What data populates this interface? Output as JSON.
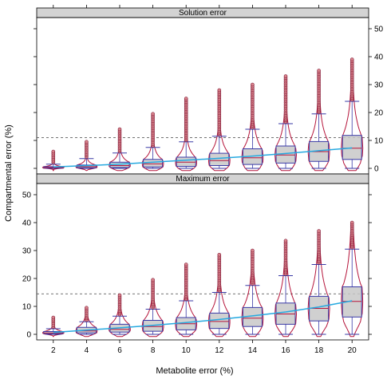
{
  "figure": {
    "xlabel": "Metabolite error (%)",
    "ylabel": "Compartmental error (%)"
  },
  "colors": {
    "strip_bg": "#d3d3d3",
    "box_fill": "#c8c8c8",
    "box_border": "#3a3aa6",
    "violin": "#b5143a",
    "outlier_fill": "#d8828a",
    "outlier_stroke": "#7a1030",
    "trend": "#26a9e0",
    "reference_line": "#444444"
  },
  "chart_data": [
    {
      "type": "box",
      "title": "Solution error",
      "x": [
        2,
        4,
        6,
        8,
        10,
        12,
        14,
        16,
        18,
        20
      ],
      "ylim": [
        -2,
        54
      ],
      "yticks": [
        0,
        10,
        20,
        30,
        40,
        50
      ],
      "y_axis_side": "right",
      "reference_line": 11,
      "grid": false,
      "series": [
        {
          "median": [
            0.3,
            0.6,
            1.0,
            1.6,
            2.2,
            2.8,
            3.8,
            4.8,
            6.0,
            7.2
          ],
          "q1": [
            0.1,
            0.2,
            0.3,
            0.5,
            0.7,
            1.0,
            1.4,
            1.9,
            2.5,
            3.2
          ],
          "q3": [
            0.6,
            1.2,
            2.2,
            3.2,
            4.0,
            5.4,
            7.0,
            8.0,
            9.6,
            11.8
          ],
          "whisker_low": [
            0,
            0,
            0,
            0,
            0,
            0,
            0,
            0,
            0,
            0
          ],
          "whisker_high": [
            1.5,
            3.5,
            5.5,
            7.5,
            9.5,
            11.5,
            14.0,
            16.0,
            19.5,
            24.0
          ],
          "max": [
            6.0,
            9.5,
            14.0,
            19.5,
            25.0,
            28.0,
            30.0,
            33.0,
            35.0,
            39.0
          ],
          "trend": [
            0.5,
            1.0,
            1.5,
            2.2,
            2.9,
            3.6,
            4.4,
            5.3,
            6.3,
            7.3
          ]
        }
      ]
    },
    {
      "type": "box",
      "title": "Maximum error",
      "x": [
        2,
        4,
        6,
        8,
        10,
        12,
        14,
        16,
        18,
        20
      ],
      "ylim": [
        -2,
        54
      ],
      "yticks": [
        0,
        10,
        20,
        30,
        40,
        50
      ],
      "y_axis_side": "left",
      "reference_line": 14.5,
      "grid": false,
      "series": [
        {
          "median": [
            0.5,
            1.2,
            1.8,
            2.8,
            3.8,
            4.6,
            5.8,
            7.3,
            9.3,
            11.8
          ],
          "q1": [
            0.2,
            0.5,
            0.8,
            1.1,
            1.6,
            2.1,
            2.8,
            3.6,
            4.8,
            6.2
          ],
          "q3": [
            1.0,
            2.5,
            3.6,
            5.0,
            6.0,
            7.6,
            9.6,
            11.2,
            13.6,
            17.0
          ],
          "whisker_low": [
            0,
            0,
            0,
            0,
            0,
            0,
            0,
            0,
            0,
            0
          ],
          "whisker_high": [
            2.0,
            4.5,
            6.5,
            9.0,
            12.0,
            15.0,
            17.5,
            21.0,
            25.0,
            30.5
          ],
          "max": [
            6.0,
            9.5,
            14.0,
            19.5,
            25.0,
            28.5,
            30.0,
            33.5,
            37.0,
            40.0
          ],
          "trend": [
            0.7,
            1.5,
            2.3,
            3.2,
            4.2,
            5.3,
            6.6,
            8.0,
            9.8,
            12.0
          ]
        }
      ]
    }
  ]
}
